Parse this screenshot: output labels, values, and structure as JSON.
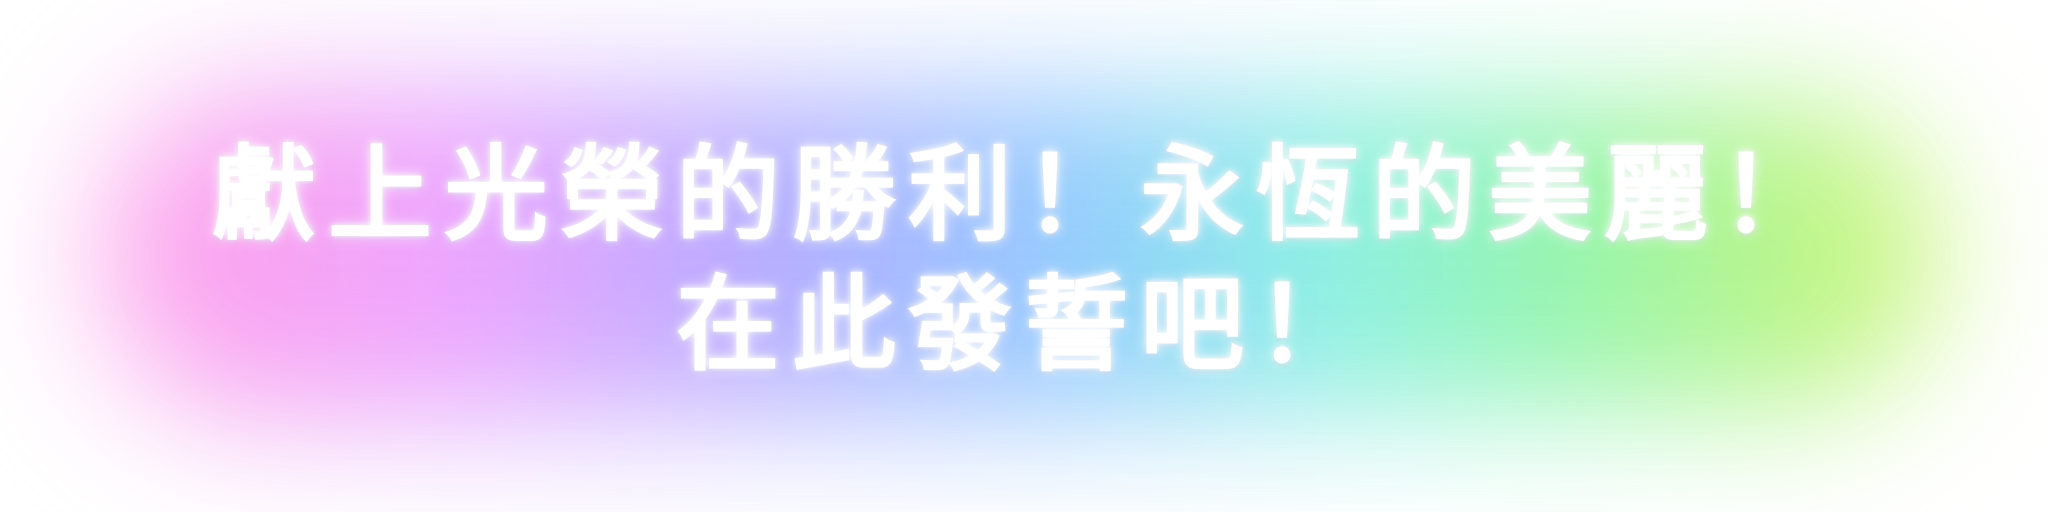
{
  "banner": {
    "line1": "獻上光榮的勝利！永恆的美麗！",
    "line2": "在此發誓吧！",
    "text_color": "#ffffff",
    "glow_colors": [
      "#ff9ce8",
      "#eea0ff",
      "#b3a8ff",
      "#8ec8ff",
      "#86f0e6",
      "#8ff5a8",
      "#ccf56f"
    ]
  }
}
